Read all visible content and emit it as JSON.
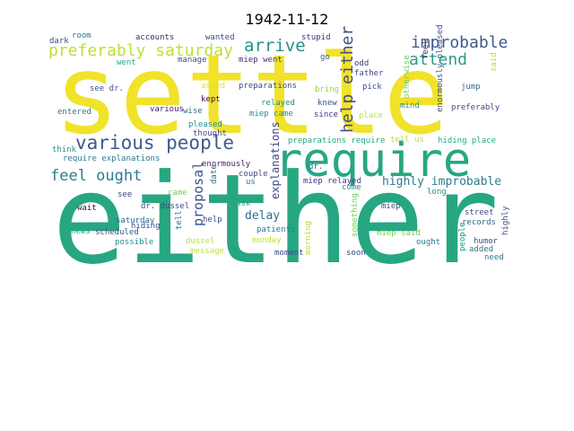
{
  "title": "1942-11-12",
  "words": [
    {
      "text": "settle",
      "color": "#f1e22a"
    },
    {
      "text": "either",
      "color": "#27a682"
    },
    {
      "text": "require",
      "color": "#27a682"
    },
    {
      "text": "various people",
      "color": "#3f5a8c"
    },
    {
      "text": "preferably saturday",
      "color": "#bddf38"
    },
    {
      "text": "arrive",
      "color": "#23908c"
    },
    {
      "text": "improbable",
      "color": "#3f5a8c"
    },
    {
      "text": "help either",
      "color": "#3f4c8a"
    },
    {
      "text": "attend",
      "color": "#2a9d84"
    },
    {
      "text": "feel ought",
      "color": "#2e7a8e"
    },
    {
      "text": "proposal",
      "color": "#3b538b"
    },
    {
      "text": "explanations",
      "color": "#3f4888"
    },
    {
      "text": "highly improbable",
      "color": "#2e7b8e"
    },
    {
      "text": "delay",
      "color": "#2e6e8e"
    },
    {
      "text": "dark",
      "color": "#3e4a89"
    },
    {
      "text": "room",
      "color": "#2a798e"
    },
    {
      "text": "accounts",
      "color": "#482173"
    },
    {
      "text": "wanted",
      "color": "#3e4a89"
    },
    {
      "text": "stupid",
      "color": "#46327e"
    },
    {
      "text": "go",
      "color": "#31688e"
    },
    {
      "text": "odd",
      "color": "#46327e"
    },
    {
      "text": "father",
      "color": "#3e4a89"
    },
    {
      "text": "otherwise",
      "color": "#75d054"
    },
    {
      "text": "feel",
      "color": "#46327e"
    },
    {
      "text": "said",
      "color": "#bddf38"
    },
    {
      "text": "went",
      "color": "#22a785"
    },
    {
      "text": "manage",
      "color": "#3b528b"
    },
    {
      "text": "miep went",
      "color": "#472d7b"
    },
    {
      "text": "bring",
      "color": "#8fd744"
    },
    {
      "text": "pick",
      "color": "#3e4989"
    },
    {
      "text": "enormously pleased",
      "color": "#3b528b"
    },
    {
      "text": "jump",
      "color": "#30698e"
    },
    {
      "text": "see dr.",
      "color": "#3b528b"
    },
    {
      "text": "asked",
      "color": "#e5e419"
    },
    {
      "text": "preparations",
      "color": "#3e4a89"
    },
    {
      "text": "knew",
      "color": "#3b528b"
    },
    {
      "text": "mind",
      "color": "#21918c"
    },
    {
      "text": "preferably",
      "color": "#3e4a89"
    },
    {
      "text": "kept",
      "color": "#440154"
    },
    {
      "text": "relayed",
      "color": "#21918c"
    },
    {
      "text": "entered",
      "color": "#2a788e"
    },
    {
      "text": "various",
      "color": "#481b6d"
    },
    {
      "text": "wise",
      "color": "#31688e"
    },
    {
      "text": "miep came",
      "color": "#21918c"
    },
    {
      "text": "since",
      "color": "#46327e"
    },
    {
      "text": "place",
      "color": "#bddf38"
    },
    {
      "text": "pleased",
      "color": "#21918c"
    },
    {
      "text": "thought",
      "color": "#3e4a89"
    },
    {
      "text": "preparations require",
      "color": "#22a785"
    },
    {
      "text": "tell us",
      "color": "#bddf38"
    },
    {
      "text": "hiding place",
      "color": "#22a785"
    },
    {
      "text": "think",
      "color": "#21918c"
    },
    {
      "text": "require explanations",
      "color": "#2a788e"
    },
    {
      "text": "enormously",
      "color": "#482173"
    },
    {
      "text": "dr.",
      "color": "#31688e"
    },
    {
      "text": "date",
      "color": "#31688e"
    },
    {
      "text": "couple",
      "color": "#3e4a89"
    },
    {
      "text": "us",
      "color": "#2a788e"
    },
    {
      "text": "miep relayed",
      "color": "#46327e"
    },
    {
      "text": "come",
      "color": "#21918c"
    },
    {
      "text": "see",
      "color": "#3e4a89"
    },
    {
      "text": "dr. dussel",
      "color": "#3e4a89"
    },
    {
      "text": "came",
      "color": "#75d054"
    },
    {
      "text": "ask",
      "color": "#22a785"
    },
    {
      "text": "long",
      "color": "#21918c"
    },
    {
      "text": "wait",
      "color": "#440154"
    },
    {
      "text": "hiding",
      "color": "#3b528b"
    },
    {
      "text": "saturday",
      "color": "#31688e"
    },
    {
      "text": "tell",
      "color": "#2a788e"
    },
    {
      "text": "help",
      "color": "#3e4a89"
    },
    {
      "text": "patients",
      "color": "#2a788e"
    },
    {
      "text": "something",
      "color": "#75d054"
    },
    {
      "text": "miep",
      "color": "#3e4a89"
    },
    {
      "text": "street",
      "color": "#3e4a89"
    },
    {
      "text": "records",
      "color": "#31688e"
    },
    {
      "text": "highly",
      "color": "#3b528b"
    },
    {
      "text": "news",
      "color": "#22a785"
    },
    {
      "text": "scheduled",
      "color": "#3b528b"
    },
    {
      "text": "possible",
      "color": "#21918c"
    },
    {
      "text": "dussel",
      "color": "#bddf38"
    },
    {
      "text": "monday",
      "color": "#bddf38"
    },
    {
      "text": "message",
      "color": "#bddf38"
    },
    {
      "text": "morning",
      "color": "#bddf38"
    },
    {
      "text": "miep said",
      "color": "#75d054"
    },
    {
      "text": "ought",
      "color": "#2a788e"
    },
    {
      "text": "humor",
      "color": "#3e4a89"
    },
    {
      "text": "added",
      "color": "#2a788e"
    },
    {
      "text": "people",
      "color": "#21918c"
    },
    {
      "text": "moment",
      "color": "#3e4a89"
    },
    {
      "text": "soon",
      "color": "#3e4a89"
    },
    {
      "text": "need",
      "color": "#2a788e"
    }
  ]
}
